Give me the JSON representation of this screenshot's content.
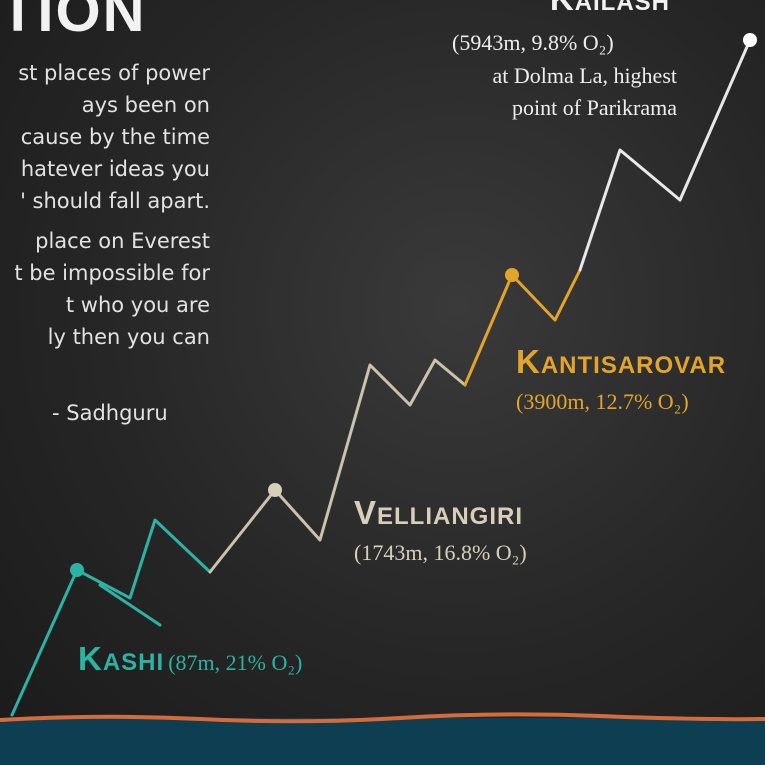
{
  "title_fragment": "TION",
  "quote": {
    "lines": [
      "st places of power",
      "ays been on",
      "cause by the time",
      "hatever ideas you",
      "' should fall apart.",
      "place on Everest",
      "t be impossible for",
      "t who you are",
      "ly then you can"
    ],
    "author": "- Sadhguru"
  },
  "stops": [
    {
      "name": "KAILASH",
      "detail": "(5943m, 9.8% O₂)",
      "note": [
        "at Dolma La, highest",
        "point of Parikrama"
      ]
    },
    {
      "name": "KANTISAROVAR",
      "detail": "(3900m, 12.7% O₂)"
    },
    {
      "name": "VELLIANGIRI",
      "detail": "(1743m, 16.8% O₂)"
    },
    {
      "name": "KASHI",
      "detail": "(87m, 21% O₂)"
    }
  ]
}
